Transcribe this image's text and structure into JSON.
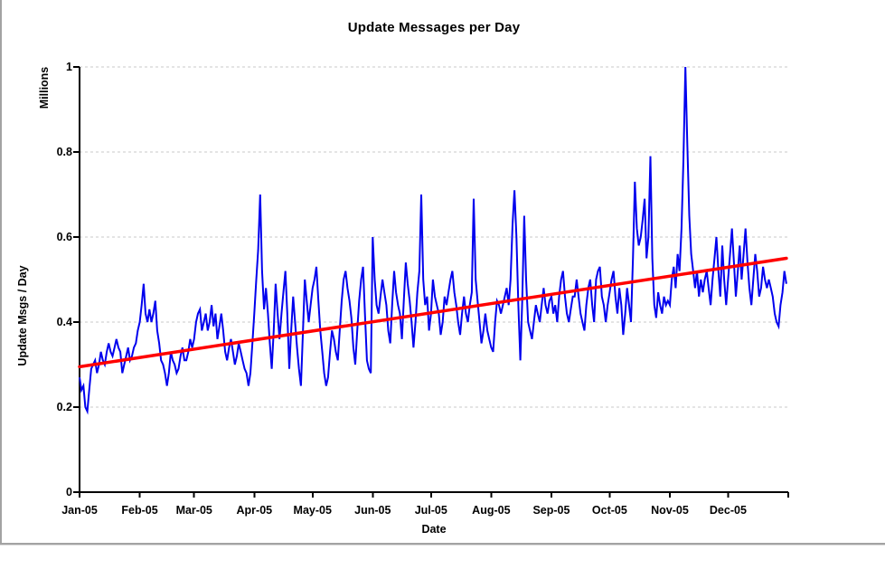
{
  "chart_data": {
    "type": "line",
    "title": "Update Messages per Day",
    "xlabel": "Date",
    "ylabel": "Update Msgs / Day",
    "y_units_label": "Millions",
    "ylim": [
      0,
      1
    ],
    "y_ticks": [
      0,
      0.2,
      0.4,
      0.6,
      0.8,
      1
    ],
    "y_tick_labels": [
      "0",
      "0.2",
      "0.4",
      "0.6",
      "0.8",
      "1"
    ],
    "x_tick_labels": [
      "Jan-05",
      "Feb-05",
      "Mar-05",
      "Apr-05",
      "May-05",
      "Jun-05",
      "Jul-05",
      "Aug-05",
      "Sep-05",
      "Oct-05",
      "Nov-05",
      "Dec-05"
    ],
    "month_start_days": [
      0,
      31,
      59,
      90,
      120,
      151,
      181,
      212,
      243,
      273,
      304,
      334,
      365
    ],
    "x_range_days": [
      0,
      365
    ],
    "grid": "horizontal-dashed",
    "legend": "none",
    "colors": {
      "series": "#0000ee",
      "trend": "#ff0000",
      "gridline": "#c9c9c9",
      "axis": "#000000"
    },
    "series": [
      {
        "name": "Update Msgs / Day (daily)",
        "color": "#0000ee",
        "x_unit": "day-of-year-2005",
        "values": [
          0.27,
          0.24,
          0.25,
          0.2,
          0.19,
          0.24,
          0.29,
          0.3,
          0.31,
          0.28,
          0.3,
          0.33,
          0.31,
          0.3,
          0.33,
          0.35,
          0.33,
          0.32,
          0.34,
          0.36,
          0.34,
          0.33,
          0.28,
          0.3,
          0.32,
          0.34,
          0.31,
          0.32,
          0.34,
          0.35,
          0.38,
          0.4,
          0.44,
          0.49,
          0.42,
          0.4,
          0.43,
          0.4,
          0.42,
          0.45,
          0.38,
          0.35,
          0.31,
          0.3,
          0.28,
          0.25,
          0.28,
          0.33,
          0.31,
          0.3,
          0.28,
          0.29,
          0.32,
          0.34,
          0.31,
          0.31,
          0.33,
          0.36,
          0.34,
          0.36,
          0.4,
          0.42,
          0.43,
          0.38,
          0.4,
          0.42,
          0.38,
          0.4,
          0.44,
          0.39,
          0.42,
          0.36,
          0.39,
          0.42,
          0.38,
          0.33,
          0.31,
          0.34,
          0.36,
          0.33,
          0.3,
          0.32,
          0.35,
          0.33,
          0.31,
          0.29,
          0.28,
          0.25,
          0.28,
          0.35,
          0.42,
          0.5,
          0.57,
          0.7,
          0.52,
          0.43,
          0.48,
          0.42,
          0.35,
          0.29,
          0.38,
          0.49,
          0.42,
          0.36,
          0.42,
          0.47,
          0.52,
          0.42,
          0.29,
          0.38,
          0.46,
          0.4,
          0.34,
          0.29,
          0.25,
          0.37,
          0.5,
          0.45,
          0.4,
          0.44,
          0.48,
          0.5,
          0.53,
          0.45,
          0.38,
          0.33,
          0.28,
          0.25,
          0.27,
          0.33,
          0.38,
          0.36,
          0.33,
          0.31,
          0.38,
          0.45,
          0.5,
          0.52,
          0.48,
          0.45,
          0.41,
          0.34,
          0.3,
          0.38,
          0.45,
          0.5,
          0.53,
          0.42,
          0.31,
          0.29,
          0.28,
          0.6,
          0.5,
          0.44,
          0.42,
          0.46,
          0.5,
          0.47,
          0.44,
          0.38,
          0.35,
          0.44,
          0.52,
          0.47,
          0.44,
          0.42,
          0.36,
          0.45,
          0.54,
          0.49,
          0.45,
          0.4,
          0.34,
          0.4,
          0.47,
          0.52,
          0.7,
          0.5,
          0.44,
          0.46,
          0.38,
          0.42,
          0.5,
          0.46,
          0.44,
          0.42,
          0.37,
          0.4,
          0.46,
          0.44,
          0.47,
          0.5,
          0.52,
          0.47,
          0.44,
          0.4,
          0.37,
          0.42,
          0.46,
          0.42,
          0.4,
          0.44,
          0.47,
          0.69,
          0.5,
          0.45,
          0.4,
          0.35,
          0.38,
          0.42,
          0.38,
          0.36,
          0.34,
          0.33,
          0.4,
          0.45,
          0.44,
          0.42,
          0.44,
          0.46,
          0.48,
          0.44,
          0.5,
          0.63,
          0.71,
          0.6,
          0.44,
          0.31,
          0.45,
          0.65,
          0.5,
          0.4,
          0.38,
          0.36,
          0.4,
          0.44,
          0.42,
          0.4,
          0.44,
          0.48,
          0.44,
          0.42,
          0.45,
          0.46,
          0.42,
          0.44,
          0.4,
          0.46,
          0.5,
          0.52,
          0.46,
          0.42,
          0.4,
          0.43,
          0.46,
          0.46,
          0.5,
          0.46,
          0.42,
          0.4,
          0.38,
          0.44,
          0.48,
          0.5,
          0.44,
          0.4,
          0.5,
          0.52,
          0.53,
          0.46,
          0.44,
          0.4,
          0.44,
          0.47,
          0.5,
          0.52,
          0.46,
          0.42,
          0.48,
          0.44,
          0.37,
          0.42,
          0.48,
          0.44,
          0.4,
          0.55,
          0.73,
          0.62,
          0.58,
          0.6,
          0.64,
          0.69,
          0.55,
          0.6,
          0.79,
          0.55,
          0.44,
          0.41,
          0.47,
          0.44,
          0.42,
          0.46,
          0.44,
          0.45,
          0.44,
          0.5,
          0.53,
          0.48,
          0.56,
          0.52,
          0.62,
          0.78,
          1.0,
          0.82,
          0.65,
          0.56,
          0.52,
          0.48,
          0.52,
          0.46,
          0.5,
          0.47,
          0.5,
          0.52,
          0.48,
          0.44,
          0.5,
          0.55,
          0.6,
          0.52,
          0.46,
          0.58,
          0.5,
          0.44,
          0.5,
          0.56,
          0.62,
          0.54,
          0.46,
          0.52,
          0.58,
          0.5,
          0.56,
          0.62,
          0.54,
          0.48,
          0.44,
          0.5,
          0.56,
          0.52,
          0.46,
          0.48,
          0.53,
          0.5,
          0.48,
          0.5,
          0.48,
          0.46,
          0.42,
          0.4,
          0.39,
          0.44,
          0.47,
          0.52,
          0.49
        ]
      },
      {
        "name": "Linear trend",
        "color": "#ff0000",
        "points": [
          [
            0,
            0.295
          ],
          [
            364,
            0.55
          ]
        ]
      }
    ]
  }
}
